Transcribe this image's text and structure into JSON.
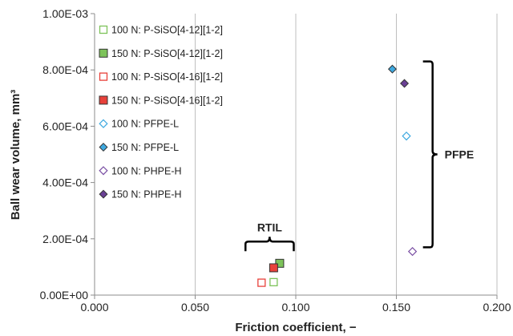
{
  "chart_data": {
    "type": "scatter",
    "xlabel": "Friction coefficient, −",
    "ylabel": "Ball wear volume, mm³",
    "xlim": [
      0,
      0.2
    ],
    "ylim": [
      0,
      0.001
    ],
    "x_ticks": [
      "0.000",
      "0.050",
      "0.100",
      "0.150",
      "0.200"
    ],
    "y_ticks": [
      "0.00E+00",
      "2.00E-04",
      "4.00E-04",
      "6.00E-04",
      "8.00E-04",
      "1.00E-03"
    ],
    "grid": "vertical",
    "legend_position": "top-left",
    "series": [
      {
        "name": "100 N: P-SiSO[4-12][1-2]",
        "marker": "square",
        "filled": false,
        "color": "#7dc35a",
        "points": [
          {
            "x": 0.089,
            "y": 4.6e-05
          }
        ]
      },
      {
        "name": "150 N: P-SiSO[4-12][1-2]",
        "marker": "square",
        "filled": true,
        "color": "#7dc35a",
        "points": [
          {
            "x": 0.092,
            "y": 0.000113
          }
        ]
      },
      {
        "name": "100 N: P-SiSO[4-16][1-2]",
        "marker": "square",
        "filled": false,
        "color": "#e8413a",
        "points": [
          {
            "x": 0.083,
            "y": 4.4e-05
          }
        ]
      },
      {
        "name": "150 N: P-SiSO[4-16][1-2]",
        "marker": "square",
        "filled": true,
        "color": "#e8413a",
        "points": [
          {
            "x": 0.089,
            "y": 9.7e-05
          }
        ]
      },
      {
        "name": "100 N: PFPE-L",
        "marker": "diamond",
        "filled": false,
        "color": "#3ea9e0",
        "points": [
          {
            "x": 0.155,
            "y": 0.000565
          }
        ]
      },
      {
        "name": "150 N: PFPE-L",
        "marker": "diamond",
        "filled": true,
        "color": "#3ea9e0",
        "points": [
          {
            "x": 0.148,
            "y": 0.000803
          }
        ]
      },
      {
        "name": "100 N: PHPE-H",
        "marker": "diamond",
        "filled": false,
        "color": "#7a4fa3",
        "points": [
          {
            "x": 0.158,
            "y": 0.000155
          }
        ]
      },
      {
        "name": "150 N: PHPE-H",
        "marker": "diamond",
        "filled": true,
        "color": "#6a4095",
        "points": [
          {
            "x": 0.154,
            "y": 0.000752
          }
        ]
      }
    ],
    "annotations": [
      {
        "text": "RTIL",
        "brace": "horizontal",
        "x_range": [
          0.075,
          0.099
        ],
        "y_value": 0.00019
      },
      {
        "text": "PFPE",
        "brace": "vertical",
        "y_range": [
          0.00017,
          0.00083
        ],
        "x_value": 0.168
      }
    ]
  }
}
